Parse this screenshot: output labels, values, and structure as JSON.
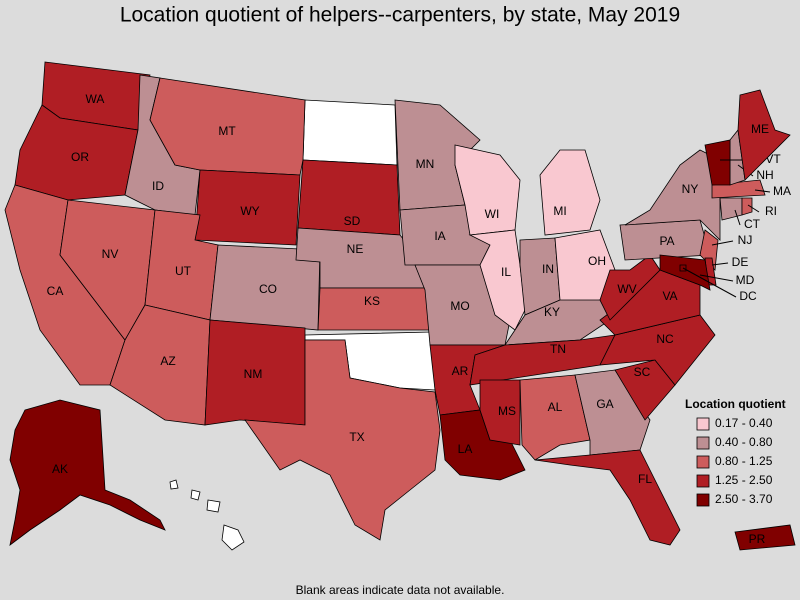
{
  "title": "Location quotient of helpers--carpenters, by state, May 2019",
  "legend": {
    "title": "Location quotient",
    "items": [
      {
        "label": "0.17 - 0.40",
        "color": "#f9c8d0"
      },
      {
        "label": "0.40 - 0.80",
        "color": "#bd8f93"
      },
      {
        "label": "0.80 - 1.25",
        "color": "#cd5c5c"
      },
      {
        "label": "1.25 - 2.50",
        "color": "#b01e24"
      },
      {
        "label": "2.50 - 3.70",
        "color": "#800000"
      }
    ]
  },
  "states": [
    {
      "label": "WA",
      "color": "#b01e24"
    },
    {
      "label": "OR",
      "color": "#b01e24"
    },
    {
      "label": "CA",
      "color": "#cd5c5c"
    },
    {
      "label": "NV",
      "color": "#cd5c5c"
    },
    {
      "label": "ID",
      "color": "#bd8f93"
    },
    {
      "label": "MT",
      "color": "#cd5c5c"
    },
    {
      "label": "WY",
      "color": "#b01e24"
    },
    {
      "label": "UT",
      "color": "#cd5c5c"
    },
    {
      "label": "AZ",
      "color": "#cd5c5c"
    },
    {
      "label": "CO",
      "color": "#bd8f93"
    },
    {
      "label": "NM",
      "color": "#b01e24"
    },
    {
      "label": "SD",
      "color": "#b01e24"
    },
    {
      "label": "NE",
      "color": "#bd8f93"
    },
    {
      "label": "KS",
      "color": "#cd5c5c"
    },
    {
      "label": "TX",
      "color": "#cd5c5c"
    },
    {
      "label": "MN",
      "color": "#bd8f93"
    },
    {
      "label": "IA",
      "color": "#bd8f93"
    },
    {
      "label": "MO",
      "color": "#bd8f93"
    },
    {
      "label": "AR",
      "color": "#b01e24"
    },
    {
      "label": "LA",
      "color": "#800000"
    },
    {
      "label": "WI",
      "color": "#f9c8d0"
    },
    {
      "label": "IL",
      "color": "#f9c8d0"
    },
    {
      "label": "MI",
      "color": "#f9c8d0"
    },
    {
      "label": "IN",
      "color": "#bd8f93"
    },
    {
      "label": "OH",
      "color": "#f9c8d0"
    },
    {
      "label": "KY",
      "color": "#bd8f93"
    },
    {
      "label": "TN",
      "color": "#b01e24"
    },
    {
      "label": "MS",
      "color": "#b01e24"
    },
    {
      "label": "AL",
      "color": "#cd5c5c"
    },
    {
      "label": "GA",
      "color": "#bd8f93"
    },
    {
      "label": "FL",
      "color": "#b01e24"
    },
    {
      "label": "SC",
      "color": "#b01e24"
    },
    {
      "label": "NC",
      "color": "#b01e24"
    },
    {
      "label": "VA",
      "color": "#b01e24"
    },
    {
      "label": "WV",
      "color": "#b01e24"
    },
    {
      "label": "PA",
      "color": "#bd8f93"
    },
    {
      "label": "NY",
      "color": "#bd8f93"
    },
    {
      "label": "NJ",
      "color": "#cd5c5c"
    },
    {
      "label": "DE",
      "color": "#b01e24"
    },
    {
      "label": "MD",
      "color": "#800000"
    },
    {
      "label": "DC",
      "color": "#800000"
    },
    {
      "label": "CT",
      "color": "#bd8f93"
    },
    {
      "label": "RI",
      "color": "#cd5c5c"
    },
    {
      "label": "MA",
      "color": "#cd5c5c"
    },
    {
      "label": "NH",
      "color": "#bd8f93"
    },
    {
      "label": "VT",
      "color": "#800000"
    },
    {
      "label": "ME",
      "color": "#b01e24"
    },
    {
      "label": "AK",
      "color": "#800000"
    },
    {
      "label": "PR",
      "color": "#800000"
    }
  ],
  "footnote": "Blank areas indicate data not available."
}
